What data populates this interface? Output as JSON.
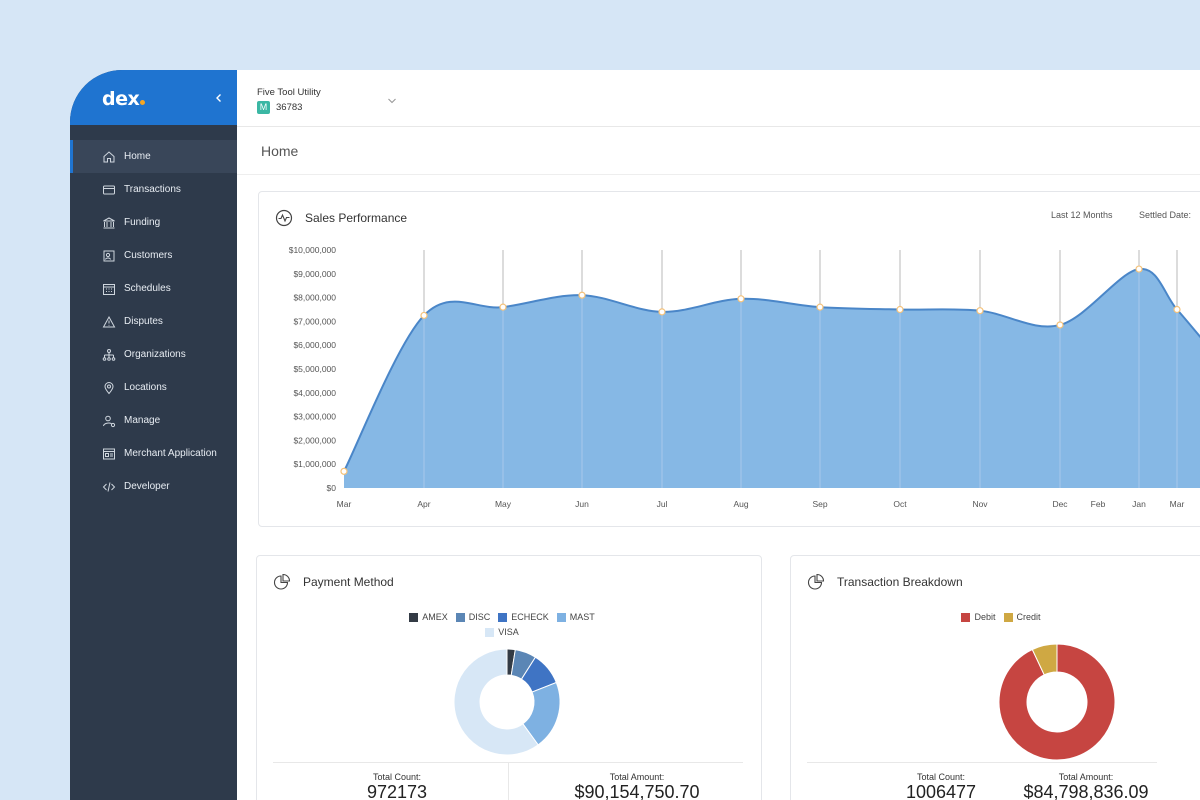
{
  "brand": {
    "logo_text": "dex",
    "accent": "#1f74d0",
    "dot_color": "#f5a623"
  },
  "sidebar": {
    "items": [
      {
        "label": "Home",
        "icon": "home-icon",
        "active": true
      },
      {
        "label": "Transactions",
        "icon": "card-icon"
      },
      {
        "label": "Funding",
        "icon": "bank-icon"
      },
      {
        "label": "Customers",
        "icon": "contacts-icon"
      },
      {
        "label": "Schedules",
        "icon": "calendar-icon"
      },
      {
        "label": "Disputes",
        "icon": "warning-icon"
      },
      {
        "label": "Organizations",
        "icon": "hierarchy-icon"
      },
      {
        "label": "Locations",
        "icon": "pin-icon"
      },
      {
        "label": "Manage",
        "icon": "user-gear-icon"
      },
      {
        "label": "Merchant Application",
        "icon": "form-icon"
      },
      {
        "label": "Developer",
        "icon": "code-icon"
      }
    ]
  },
  "topbar": {
    "org_name": "Five Tool Utility",
    "org_badge": "M",
    "org_id": "36783"
  },
  "page": {
    "title": "Home"
  },
  "sales": {
    "title": "Sales Performance",
    "range_label": "Last 12 Months",
    "settled_label": "Settled Date:"
  },
  "chart_data": [
    {
      "type": "area",
      "title": "Sales Performance",
      "x": [
        "Mar",
        "Apr",
        "May",
        "Jun",
        "Jul",
        "Aug",
        "Sep",
        "Oct",
        "Nov",
        "Dec",
        "Feb",
        "Jan",
        "Mar"
      ],
      "series": [
        {
          "values": [
            700000,
            7250000,
            7600000,
            8100000,
            7400000,
            7950000,
            7600000,
            7500000,
            7450000,
            6850000,
            null,
            9200000,
            7500000
          ]
        }
      ],
      "y_ticks": [
        "$0",
        "$1,000,000",
        "$2,000,000",
        "$3,000,000",
        "$4,000,000",
        "$5,000,000",
        "$6,000,000",
        "$7,000,000",
        "$8,000,000",
        "$9,000,000",
        "$10,000,000"
      ],
      "ylim": [
        0,
        10000000
      ],
      "fill_color": "#86b8e5",
      "line_color": "#4a86c8"
    },
    {
      "type": "pie",
      "title": "Payment Method",
      "categories": [
        "AMEX",
        "DISC",
        "ECHECK",
        "MAST",
        "VISA"
      ],
      "values": [
        2.5,
        6.5,
        10,
        21,
        60
      ],
      "colors": [
        "#333b45",
        "#5b86b5",
        "#3f74c4",
        "#7eb1e2",
        "#d7e7f6"
      ]
    },
    {
      "type": "pie",
      "title": "Transaction Breakdown",
      "categories": [
        "Debit",
        "Credit"
      ],
      "values": [
        93,
        7
      ],
      "colors": [
        "#c64541",
        "#cfa843"
      ]
    }
  ],
  "payment": {
    "title": "Payment Method",
    "total_count_label": "Total Count:",
    "total_count": "972173",
    "total_amount_label": "Total Amount:",
    "total_amount": "$90,154,750.70"
  },
  "transactions": {
    "title": "Transaction Breakdown",
    "total_count_label": "Total Count:",
    "total_count": "1006477",
    "total_amount_label": "Total Amount:",
    "total_amount": "$84,798,836.09"
  }
}
